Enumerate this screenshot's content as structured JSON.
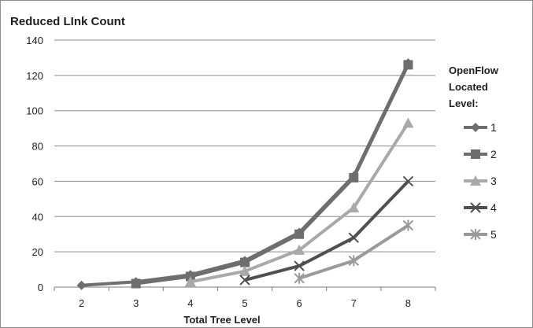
{
  "chart_data": {
    "type": "line",
    "title": "Reduced LInk Count",
    "xlabel": "Total Tree Level",
    "ylabel": "",
    "categories": [
      "2",
      "3",
      "4",
      "5",
      "6",
      "7",
      "8"
    ],
    "ylim": [
      0,
      140
    ],
    "yticks": [
      0,
      20,
      40,
      60,
      80,
      100,
      120,
      140
    ],
    "grid": true,
    "legend_title": [
      "OpenFlow",
      "Located",
      "Level:"
    ],
    "legend_position": "right",
    "series": [
      {
        "name": "1",
        "marker": "diamond",
        "color": "#6e6e6e",
        "values": [
          1,
          3,
          7,
          15,
          31,
          63,
          127
        ]
      },
      {
        "name": "2",
        "marker": "square",
        "color": "#6e6e6e",
        "values": [
          null,
          2,
          6,
          14,
          30,
          62,
          126
        ]
      },
      {
        "name": "3",
        "marker": "triangle",
        "color": "#a9a9a9",
        "values": [
          null,
          null,
          3,
          9,
          21,
          45,
          93
        ]
      },
      {
        "name": "4",
        "marker": "x",
        "color": "#505050",
        "values": [
          null,
          null,
          null,
          4,
          12,
          28,
          60
        ]
      },
      {
        "name": "5",
        "marker": "star",
        "color": "#9a9a9a",
        "values": [
          null,
          null,
          null,
          null,
          5,
          15,
          35
        ]
      }
    ]
  }
}
